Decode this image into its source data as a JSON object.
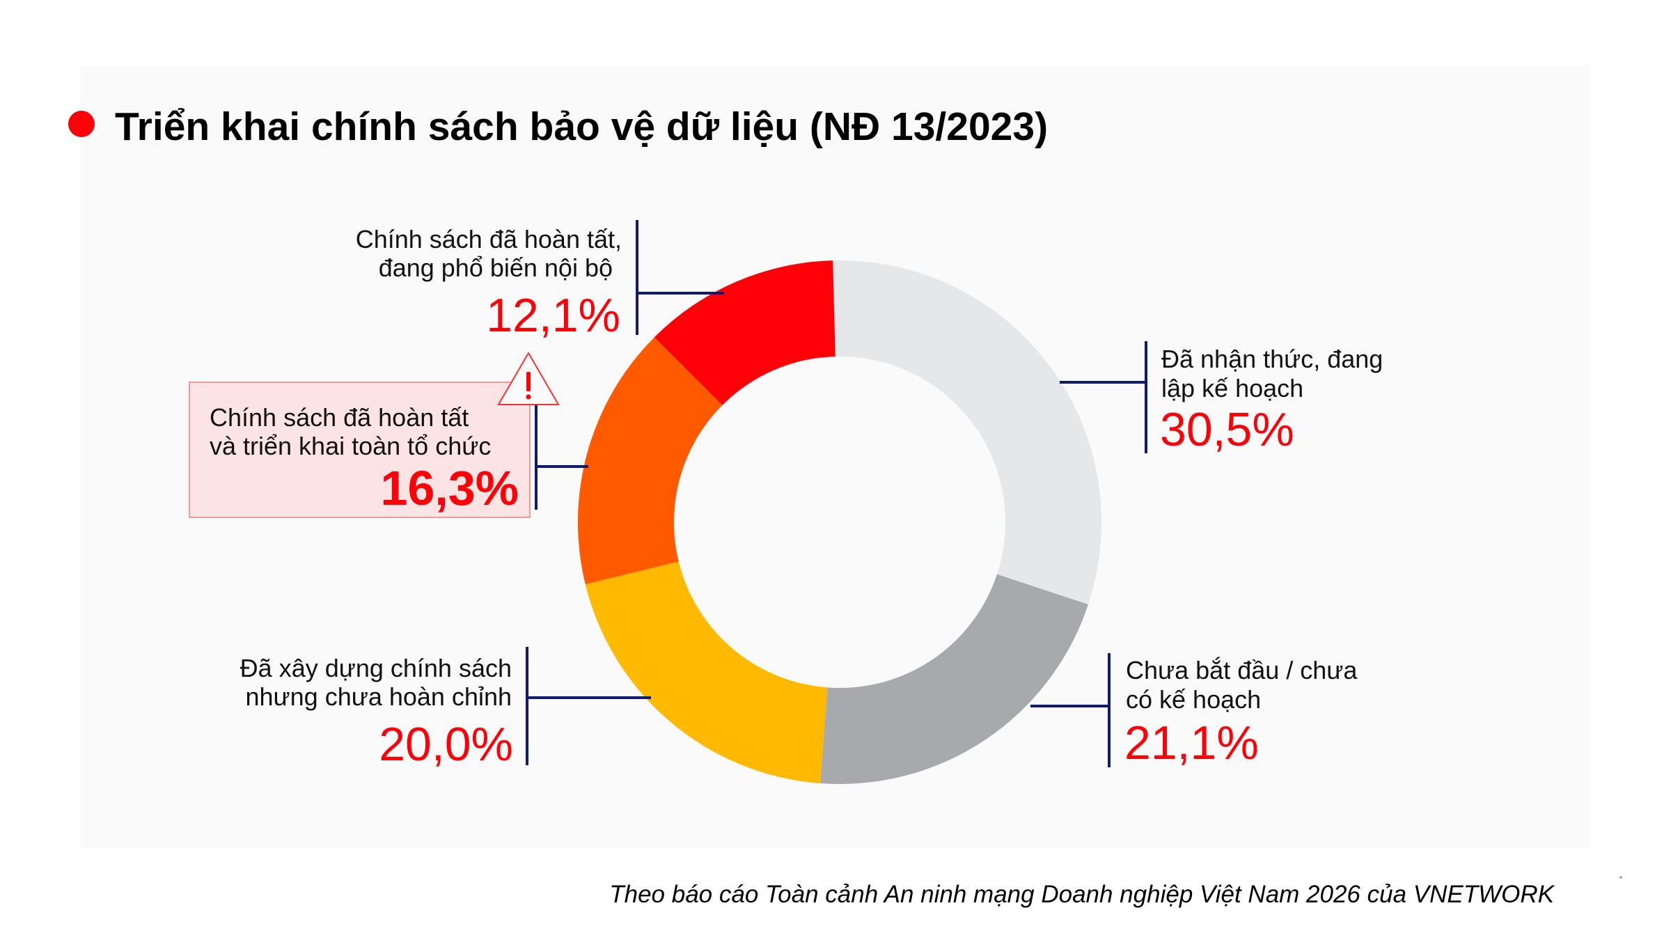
{
  "title": "Triển khai chính sách bảo vệ dữ liệu (NĐ 13/2023)",
  "caption": "Theo báo cáo Toàn cảnh An ninh mạng Doanh nghiệp Việt Nam 2026 của VNETWORK",
  "colors": {
    "accent": "#ff0008",
    "leader": "#101a6e",
    "panel_bg": "#fafafa",
    "highlight_fill": "#fde4e4",
    "highlight_border": "#f59a9a"
  },
  "labels": {
    "aware_planning": {
      "line1": "Đã nhận thức, đang",
      "line2": "lập kế hoạch",
      "value": "30,5%"
    },
    "not_started": {
      "line1": "Chưa bắt đầu / chưa",
      "line2": "có kế hoạch",
      "value": "21,1%"
    },
    "built_incomplete": {
      "line1": "Đã xây dựng chính sách",
      "line2": "nhưng chưa hoàn chỉnh",
      "value": "20,0%"
    },
    "complete_deployed": {
      "line1": "Chính sách đã hoàn tất",
      "line2": "và triển khai toàn tổ chức",
      "value": "16,3%"
    },
    "complete_disseminating": {
      "line1": "Chính sách đã hoàn tất,",
      "line2": "đang phổ biến nội bộ",
      "value": "12,1%"
    }
  },
  "warning_icon": "warning-triangle-icon",
  "chart_data": {
    "type": "pie",
    "variant": "donut",
    "title": "Triển khai chính sách bảo vệ dữ liệu (NĐ 13/2023)",
    "categories": [
      "Đã nhận thức, đang lập kế hoạch",
      "Chưa bắt đầu / chưa có kế hoạch",
      "Đã xây dựng chính sách nhưng chưa hoàn chỉnh",
      "Chính sách đã hoàn tất và triển khai toàn tổ chức",
      "Chính sách đã hoàn tất, đang phổ biến nội bộ"
    ],
    "values": [
      30.5,
      21.1,
      20.0,
      16.3,
      12.1
    ],
    "unit": "%",
    "colors": [
      "#e6e7e9",
      "#a8a9ad",
      "#ffba00",
      "#ff5a00",
      "#ff0008"
    ],
    "highlighted": "Chính sách đã hoàn tất và triển khai toàn tổ chức",
    "start_angle_deg": -1.5,
    "direction": "clockwise",
    "legend": "none (leader-line labels)",
    "source": "Theo báo cáo Toàn cảnh An ninh mạng Doanh nghiệp Việt Nam 2026 của VNETWORK"
  }
}
